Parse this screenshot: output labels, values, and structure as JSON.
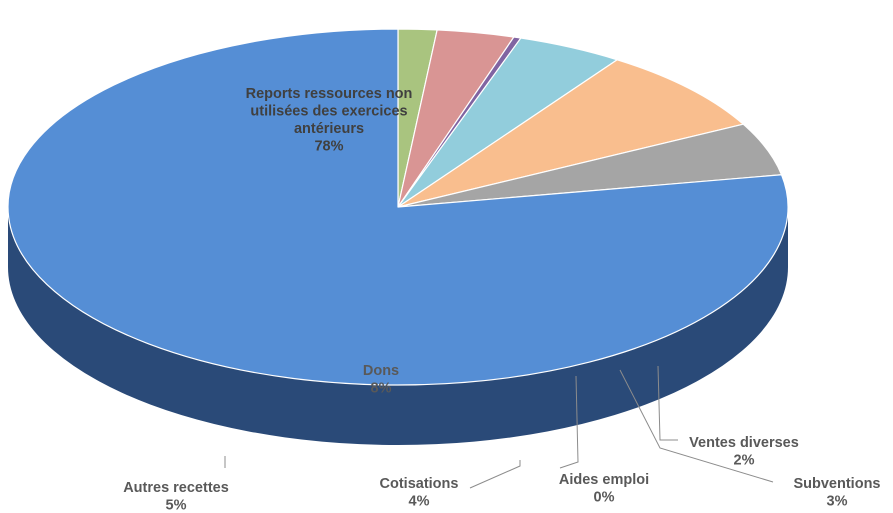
{
  "chart_data": {
    "type": "pie",
    "style": "3d-exploded-none",
    "start_angle_deg": 90,
    "direction": "clockwise",
    "slices": [
      {
        "label_lines": [
          "Ventes diverses"
        ],
        "percent_label": "2%",
        "value": 1.6,
        "color": "#a9c47f",
        "side_color": "#4f5b3b"
      },
      {
        "label_lines": [
          "Subventions"
        ],
        "percent_label": "3%",
        "value": 3.2,
        "color": "#d99594",
        "side_color": "#5c3c3b"
      },
      {
        "label_lines": [
          "Aides emploi"
        ],
        "percent_label": "0%",
        "value": 0.3,
        "color": "#8064a2",
        "side_color": "#3b2e4b"
      },
      {
        "label_lines": [
          "Cotisations"
        ],
        "percent_label": "4%",
        "value": 4.4,
        "color": "#92cddc",
        "side_color": "#3f5a62"
      },
      {
        "label_lines": [
          "Dons"
        ],
        "percent_label": "8%",
        "value": 7.8,
        "color": "#f9be8e",
        "side_color": "#a97d58"
      },
      {
        "label_lines": [
          "Autres recettes"
        ],
        "percent_label": "5%",
        "value": 4.8,
        "color": "#a5a5a5",
        "side_color": "#6b6b6b"
      },
      {
        "label_lines": [
          "Reports ressources non",
          "utilisées des exercices",
          "antérieurs"
        ],
        "percent_label": "78%",
        "value": 77.9,
        "color": "#558ed5",
        "side_color": "#2a4a78"
      }
    ]
  }
}
